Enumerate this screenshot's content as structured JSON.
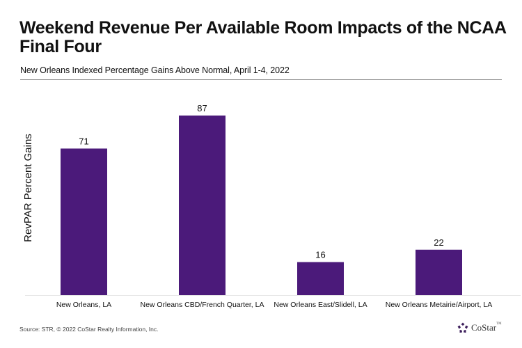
{
  "header": {
    "title": "Weekend Revenue Per Available Room Impacts of the NCAA Final Four",
    "subtitle": "New Orleans Indexed Percentage Gains Above Normal, April 1-4, 2022"
  },
  "chart_data": {
    "type": "bar",
    "title": "Weekend Revenue Per Available Room Impacts of the NCAA Final Four",
    "subtitle": "New Orleans Indexed Percentage Gains Above Normal, April 1-4, 2022",
    "categories": [
      "New Orleans, LA",
      "New Orleans CBD/French Quarter, LA",
      "New Orleans East/Slidell, LA",
      "New Orleans Metairie/Airport, LA"
    ],
    "values": [
      71,
      87,
      16,
      22
    ],
    "data_labels": [
      "71",
      "87",
      "16",
      "22"
    ],
    "xlabel": "",
    "ylabel": "RevPAR Percent Gains",
    "ylim": [
      0,
      87
    ],
    "grid": false,
    "legend": "none",
    "bar_color": "#4b1a7a"
  },
  "footer": {
    "source": "Source: STR, © 2022  CoStar Realty Information, Inc.",
    "logo_text": "CoStar",
    "logo_tm": "TM"
  }
}
